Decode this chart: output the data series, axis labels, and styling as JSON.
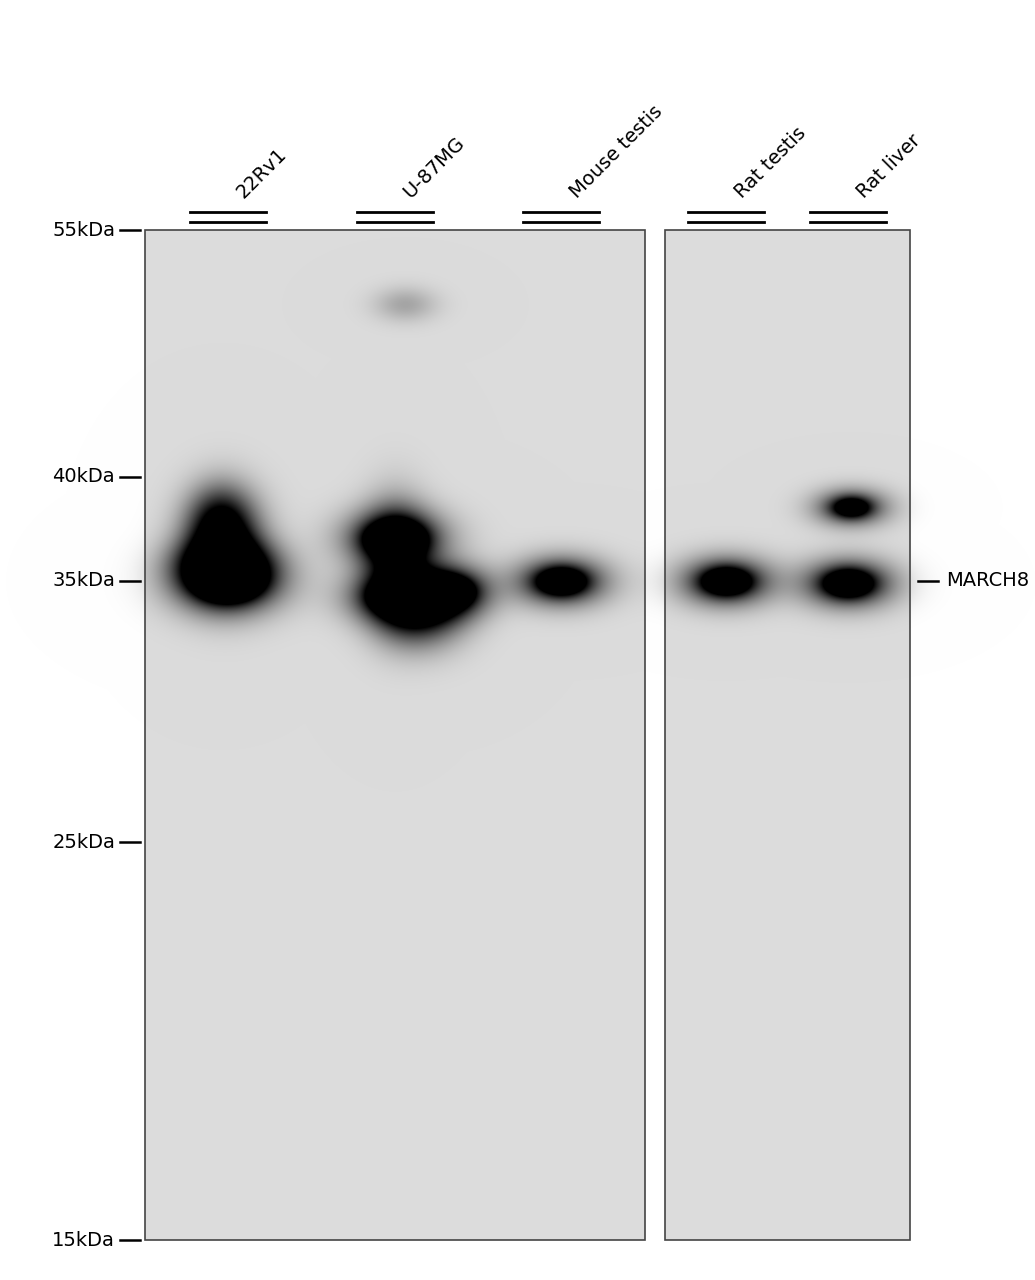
{
  "background_color": "#ffffff",
  "panel_bg": [
    220,
    220,
    220
  ],
  "lane_labels": [
    "22Rv1",
    "U-87MG",
    "Mouse testis",
    "Rat testis",
    "Rat liver"
  ],
  "mw_markers": [
    "55kDa",
    "40kDa",
    "35kDa",
    "25kDa",
    "15kDa"
  ],
  "mw_values": [
    55,
    40,
    35,
    25,
    15
  ],
  "band_label": "MARCH8",
  "figure_width": 10.35,
  "figure_height": 12.8,
  "label_fontsize": 14,
  "mw_fontsize": 14
}
